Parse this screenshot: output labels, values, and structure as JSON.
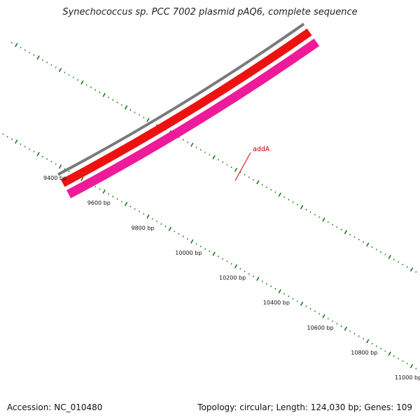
{
  "title": "Synechococcus sp. PCC 7002 plasmid pAQ6, complete sequence",
  "footer": {
    "accession": "Accession: NC_010480",
    "summary": "Topology: circular; Length: 124,030 bp; Genes: 109"
  },
  "map": {
    "position_ticks": [
      {
        "label": "9400 bp",
        "bp": 9400
      },
      {
        "label": "9600 bp",
        "bp": 9600
      },
      {
        "label": "9800 bp",
        "bp": 9800
      },
      {
        "label": "10000 bp",
        "bp": 10000
      },
      {
        "label": "10200 bp",
        "bp": 10200
      },
      {
        "label": "10400 bp",
        "bp": 10400
      },
      {
        "label": "10600 bp",
        "bp": 10600
      },
      {
        "label": "10800 bp",
        "bp": 10800
      },
      {
        "label": "11000 bp",
        "bp": 11000
      }
    ],
    "gene_label": "addA",
    "colors": {
      "backbone": "#7a7a7a",
      "cds": "#ee1111",
      "gene": "#ee1a99",
      "ticks": "#1a7a1a",
      "gene_label": "#cc0000"
    }
  }
}
